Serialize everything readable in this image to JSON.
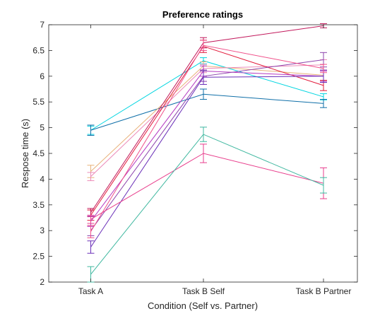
{
  "chart_data": {
    "type": "line",
    "title": "Preference ratings",
    "xlabel": "Condition (Self vs. Partner)",
    "ylabel": "Respose time (s)",
    "categories": [
      "Task A",
      "Task B Self",
      "Task B Partner"
    ],
    "ylim": [
      2,
      7
    ],
    "yticks": [
      2,
      2.5,
      3,
      3.5,
      4,
      4.5,
      5,
      5.5,
      6,
      6.5,
      7
    ],
    "grid": false,
    "legend": "none",
    "series": [
      {
        "color": "#00d5e0",
        "values": [
          4.95,
          6.3,
          5.6
        ],
        "errors": [
          0.08,
          0.06,
          0.06
        ]
      },
      {
        "color": "#0f6fa8",
        "values": [
          4.95,
          5.65,
          5.47
        ],
        "errors": [
          0.1,
          0.1,
          0.08
        ]
      },
      {
        "color": "#e8b27a",
        "values": [
          4.15,
          6.2,
          6.02
        ],
        "errors": [
          0.12,
          0.08,
          0.1
        ]
      },
      {
        "color": "#ec8ab8",
        "values": [
          4.05,
          6.15,
          6.22
        ],
        "errors": [
          0.08,
          0.08,
          0.1
        ]
      },
      {
        "color": "#e21a3a",
        "values": [
          3.3,
          6.58,
          5.82
        ],
        "errors": [
          0.1,
          0.12,
          0.1
        ]
      },
      {
        "color": "#c2185b",
        "values": [
          3.35,
          6.65,
          6.98
        ],
        "errors": [
          0.08,
          0.1,
          0.04
        ]
      },
      {
        "color": "#b43ac2",
        "values": [
          3.18,
          6.1,
          6.0
        ],
        "errors": [
          0.1,
          0.1,
          0.1
        ]
      },
      {
        "color": "#8e44ad",
        "values": [
          3.0,
          6.0,
          6.32
        ],
        "errors": [
          0.1,
          0.1,
          0.14
        ]
      },
      {
        "color": "#6a2fb8",
        "values": [
          2.68,
          5.98,
          6.0
        ],
        "errors": [
          0.12,
          0.14,
          0.12
        ]
      },
      {
        "color": "#f0508a",
        "values": [
          2.98,
          6.6,
          6.15
        ],
        "errors": [
          0.12,
          0.1,
          0.08
        ]
      },
      {
        "color": "#e83e8c",
        "values": [
          3.22,
          4.5,
          3.92
        ],
        "errors": [
          0.08,
          0.18,
          0.3
        ]
      },
      {
        "color": "#40b8a0",
        "values": [
          2.15,
          4.87,
          3.88
        ],
        "errors": [
          0.15,
          0.14,
          0.15
        ]
      }
    ]
  }
}
